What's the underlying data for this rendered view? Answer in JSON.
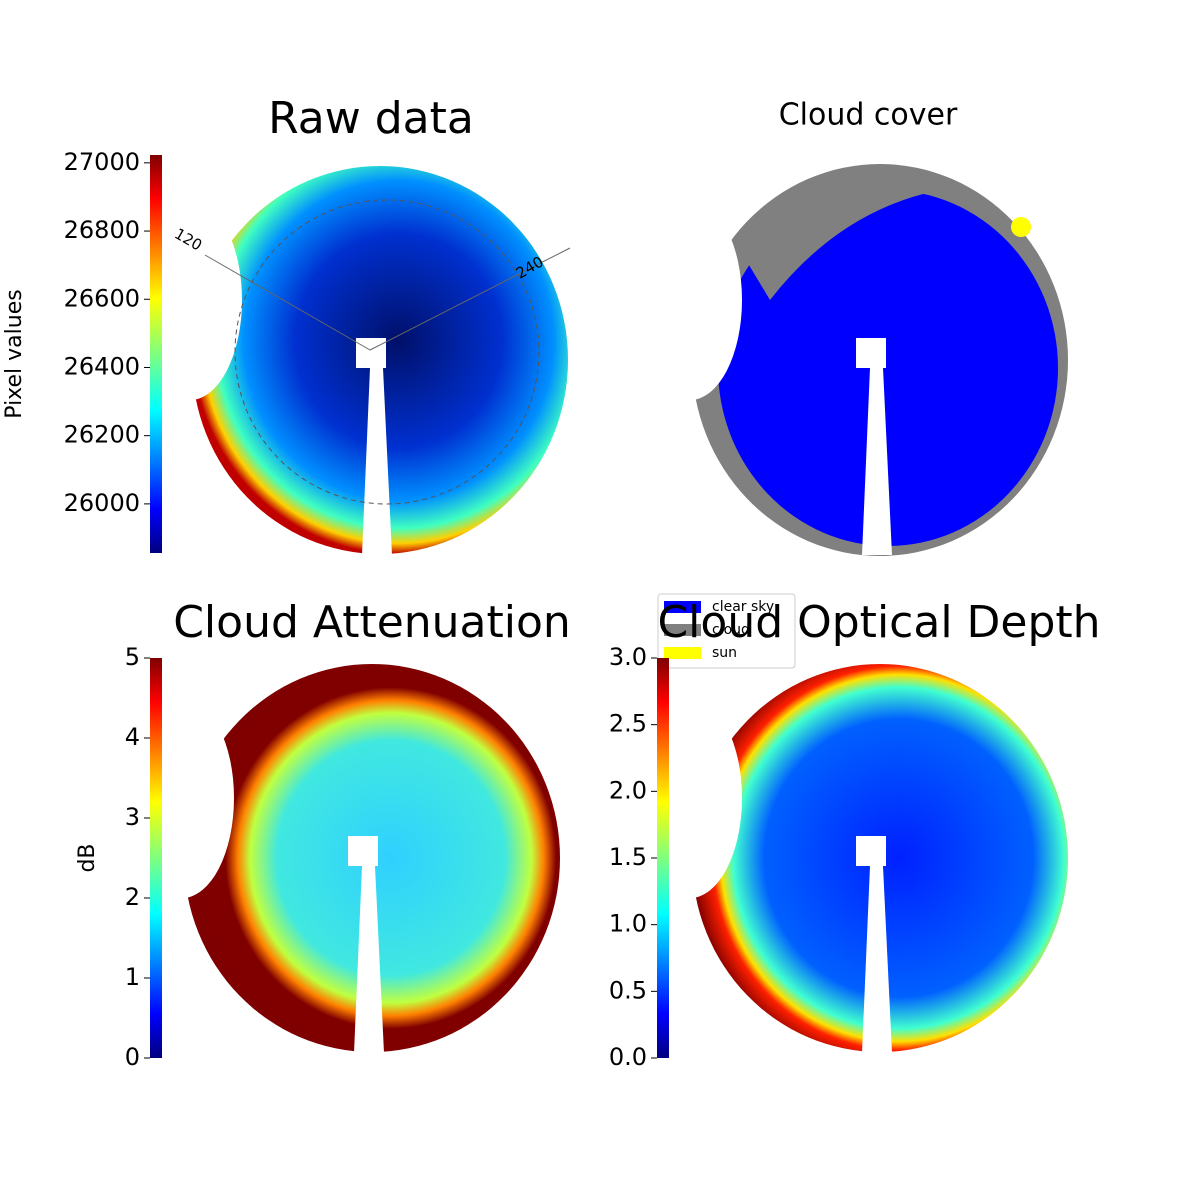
{
  "chart_data": [
    {
      "type": "image",
      "title": "Raw data",
      "colorbar_label": "Pixel values",
      "ylim": [
        25856,
        27023
      ],
      "yticks": [
        26000,
        26200,
        26400,
        26600,
        26800,
        27000
      ],
      "annotations": [
        "120",
        "240"
      ]
    },
    {
      "type": "image",
      "title": "Cloud cover",
      "series": [
        {
          "name": "clear sky",
          "color": "#0000ff"
        },
        {
          "name": "cloud",
          "color": "#808080"
        },
        {
          "name": "sun",
          "color": "#ffff00"
        }
      ]
    },
    {
      "type": "image",
      "title": "Cloud Attenuation",
      "colorbar_label": "dB",
      "ylim": [
        0,
        5
      ],
      "yticks": [
        0,
        1,
        2,
        3,
        4,
        5
      ]
    },
    {
      "type": "image",
      "title": "Cloud Optical Depth",
      "ylim": [
        0,
        3
      ],
      "yticks": [
        {
          "value": 0,
          "label": "0.0"
        },
        {
          "value": 0.5,
          "label": "0.5"
        },
        {
          "value": 1,
          "label": "1.0"
        },
        {
          "value": 1.5,
          "label": "1.5"
        },
        {
          "value": 2,
          "label": "2.0"
        },
        {
          "value": 2.5,
          "label": "2.5"
        },
        {
          "value": 3,
          "label": "3.0"
        }
      ]
    }
  ]
}
